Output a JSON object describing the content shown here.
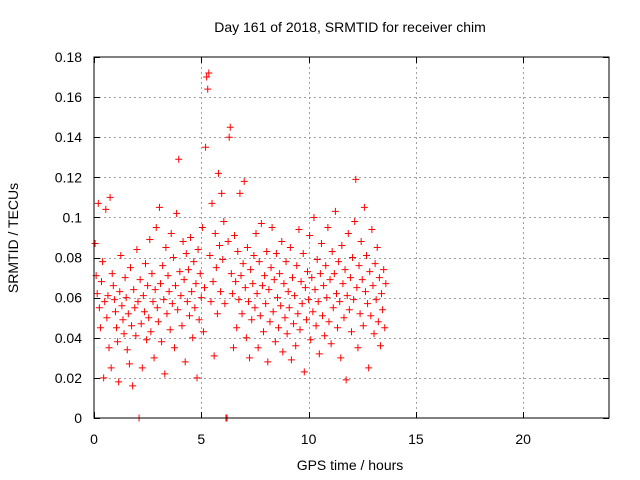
{
  "chart_data": {
    "type": "scatter",
    "title": "Day 161 of 2018, SRMTID for receiver chim",
    "xlabel": "GPS time / hours",
    "ylabel": "SRMTID / TECUs",
    "xlim": [
      0,
      24
    ],
    "ylim": [
      0,
      0.18
    ],
    "x_ticks": [
      0,
      5,
      10,
      15,
      20
    ],
    "x_tick_labels": [
      "0",
      "5",
      "10",
      "15",
      "20"
    ],
    "y_ticks": [
      0,
      0.02,
      0.04,
      0.06,
      0.08,
      0.1,
      0.12,
      0.14,
      0.16,
      0.18
    ],
    "y_tick_labels": [
      "0",
      "0.02",
      "0.04",
      "0.06",
      "0.08",
      "0.1",
      "0.12",
      "0.14",
      "0.16",
      "0.18"
    ],
    "grid": true,
    "marker": "plus",
    "color": "#ff0000",
    "series": [
      {
        "name": "SRMTID",
        "points": [
          [
            0.05,
            0.087
          ],
          [
            0.1,
            0.071
          ],
          [
            0.15,
            0.062
          ],
          [
            0.2,
            0.107
          ],
          [
            0.25,
            0.055
          ],
          [
            0.3,
            0.045
          ],
          [
            0.35,
            0.068
          ],
          [
            0.4,
            0.078
          ],
          [
            0.45,
            0.02
          ],
          [
            0.5,
            0.058
          ],
          [
            0.55,
            0.104
          ],
          [
            0.6,
            0.05
          ],
          [
            0.65,
            0.061
          ],
          [
            0.7,
            0.035
          ],
          [
            0.75,
            0.11
          ],
          [
            0.8,
            0.025
          ],
          [
            0.85,
            0.072
          ],
          [
            0.9,
            0.066
          ],
          [
            0.95,
            0.059
          ],
          [
            1.0,
            0.053
          ],
          [
            1.05,
            0.045
          ],
          [
            1.1,
            0.038
          ],
          [
            1.15,
            0.018
          ],
          [
            1.2,
            0.063
          ],
          [
            1.25,
            0.081
          ],
          [
            1.3,
            0.056
          ],
          [
            1.35,
            0.049
          ],
          [
            1.4,
            0.042
          ],
          [
            1.45,
            0.07
          ],
          [
            1.5,
            0.06
          ],
          [
            1.55,
            0.034
          ],
          [
            1.6,
            0.052
          ],
          [
            1.65,
            0.027
          ],
          [
            1.7,
            0.075
          ],
          [
            1.75,
            0.046
          ],
          [
            1.8,
            0.016
          ],
          [
            1.85,
            0.064
          ],
          [
            1.9,
            0.055
          ],
          [
            1.95,
            0.041
          ],
          [
            2.0,
            0.084
          ],
          [
            2.05,
            0.058
          ],
          [
            2.1,
            0.0
          ],
          [
            2.15,
            0.069
          ],
          [
            2.2,
            0.047
          ],
          [
            2.25,
            0.025
          ],
          [
            2.3,
            0.061
          ],
          [
            2.35,
            0.053
          ],
          [
            2.4,
            0.077
          ],
          [
            2.45,
            0.039
          ],
          [
            2.5,
            0.066
          ],
          [
            2.55,
            0.05
          ],
          [
            2.6,
            0.089
          ],
          [
            2.65,
            0.043
          ],
          [
            2.7,
            0.072
          ],
          [
            2.75,
            0.058
          ],
          [
            2.8,
            0.03
          ],
          [
            2.85,
            0.064
          ],
          [
            2.9,
            0.095
          ],
          [
            2.95,
            0.055
          ],
          [
            3.0,
            0.048
          ],
          [
            3.05,
            0.105
          ],
          [
            3.1,
            0.067
          ],
          [
            3.15,
            0.038
          ],
          [
            3.2,
            0.076
          ],
          [
            3.25,
            0.059
          ],
          [
            3.3,
            0.022
          ],
          [
            3.35,
            0.085
          ],
          [
            3.4,
            0.052
          ],
          [
            3.45,
            0.071
          ],
          [
            3.5,
            0.063
          ],
          [
            3.55,
            0.044
          ],
          [
            3.6,
            0.092
          ],
          [
            3.65,
            0.057
          ],
          [
            3.7,
            0.08
          ],
          [
            3.75,
            0.035
          ],
          [
            3.8,
            0.066
          ],
          [
            3.85,
            0.102
          ],
          [
            3.9,
            0.054
          ],
          [
            3.95,
            0.129
          ],
          [
            4.0,
            0.073
          ],
          [
            4.05,
            0.061
          ],
          [
            4.1,
            0.046
          ],
          [
            4.15,
            0.088
          ],
          [
            4.2,
            0.069
          ],
          [
            4.25,
            0.028
          ],
          [
            4.3,
            0.082
          ],
          [
            4.35,
            0.058
          ],
          [
            4.4,
            0.074
          ],
          [
            4.45,
            0.051
          ],
          [
            4.5,
            0.09
          ],
          [
            4.55,
            0.063
          ],
          [
            4.6,
            0.04
          ],
          [
            4.65,
            0.078
          ],
          [
            4.7,
            0.055
          ],
          [
            4.75,
            0.067
          ],
          [
            4.8,
            0.02
          ],
          [
            4.85,
            0.084
          ],
          [
            4.9,
            0.049
          ],
          [
            4.95,
            0.072
          ],
          [
            5.0,
            0.06
          ],
          [
            5.05,
            0.095
          ],
          [
            5.1,
            0.043
          ],
          [
            5.15,
            0.065
          ],
          [
            5.2,
            0.135
          ],
          [
            5.25,
            0.17
          ],
          [
            5.3,
            0.164
          ],
          [
            5.35,
            0.172
          ],
          [
            5.4,
            0.081
          ],
          [
            5.45,
            0.058
          ],
          [
            5.5,
            0.107
          ],
          [
            5.55,
            0.068
          ],
          [
            5.6,
            0.031
          ],
          [
            5.65,
            0.092
          ],
          [
            5.7,
            0.075
          ],
          [
            5.75,
            0.052
          ],
          [
            5.8,
            0.122
          ],
          [
            5.85,
            0.086
          ],
          [
            5.9,
            0.063
          ],
          [
            5.95,
            0.112
          ],
          [
            6.0,
            0.079
          ],
          [
            6.05,
            0.098
          ],
          [
            6.1,
            0.057
          ],
          [
            6.15,
            0.0
          ],
          [
            6.2,
            0.0
          ],
          [
            6.25,
            0.088
          ],
          [
            6.3,
            0.14
          ],
          [
            6.35,
            0.145
          ],
          [
            6.4,
            0.072
          ],
          [
            6.45,
            0.062
          ],
          [
            6.5,
            0.035
          ],
          [
            6.55,
            0.091
          ],
          [
            6.6,
            0.068
          ],
          [
            6.65,
            0.045
          ],
          [
            6.7,
            0.083
          ],
          [
            6.75,
            0.059
          ],
          [
            6.8,
            0.112
          ],
          [
            6.85,
            0.071
          ],
          [
            6.9,
            0.052
          ],
          [
            6.95,
            0.077
          ],
          [
            7.0,
            0.118
          ],
          [
            7.05,
            0.065
          ],
          [
            7.1,
            0.04
          ],
          [
            7.15,
            0.085
          ],
          [
            7.2,
            0.058
          ],
          [
            7.25,
            0.03
          ],
          [
            7.3,
            0.074
          ],
          [
            7.35,
            0.049
          ],
          [
            7.4,
            0.067
          ],
          [
            7.45,
            0.081
          ],
          [
            7.5,
            0.055
          ],
          [
            7.55,
            0.092
          ],
          [
            7.6,
            0.062
          ],
          [
            7.65,
            0.035
          ],
          [
            7.7,
            0.078
          ],
          [
            7.75,
            0.051
          ],
          [
            7.8,
            0.097
          ],
          [
            7.85,
            0.066
          ],
          [
            7.9,
            0.043
          ],
          [
            7.95,
            0.071
          ],
          [
            8.0,
            0.057
          ],
          [
            8.05,
            0.083
          ],
          [
            8.1,
            0.028
          ],
          [
            8.15,
            0.064
          ],
          [
            8.2,
            0.048
          ],
          [
            8.25,
            0.075
          ],
          [
            8.3,
            0.095
          ],
          [
            8.35,
            0.053
          ],
          [
            8.4,
            0.069
          ],
          [
            8.45,
            0.038
          ],
          [
            8.5,
            0.082
          ],
          [
            8.55,
            0.06
          ],
          [
            8.6,
            0.045
          ],
          [
            8.65,
            0.072
          ],
          [
            8.7,
            0.056
          ],
          [
            8.75,
            0.088
          ],
          [
            8.8,
            0.033
          ],
          [
            8.85,
            0.067
          ],
          [
            8.9,
            0.05
          ],
          [
            8.95,
            0.078
          ],
          [
            9.0,
            0.042
          ],
          [
            9.05,
            0.063
          ],
          [
            9.1,
            0.055
          ],
          [
            9.15,
            0.085
          ],
          [
            9.2,
            0.029
          ],
          [
            9.25,
            0.07
          ],
          [
            9.3,
            0.047
          ],
          [
            9.35,
            0.061
          ],
          [
            9.4,
            0.036
          ],
          [
            9.45,
            0.076
          ],
          [
            9.5,
            0.052
          ],
          [
            9.55,
            0.094
          ],
          [
            9.6,
            0.044
          ],
          [
            9.65,
            0.068
          ],
          [
            9.7,
            0.057
          ],
          [
            9.75,
            0.082
          ],
          [
            9.8,
            0.023
          ],
          [
            9.85,
            0.065
          ],
          [
            9.9,
            0.049
          ],
          [
            9.95,
            0.073
          ],
          [
            10.0,
            0.059
          ],
          [
            10.05,
            0.091
          ],
          [
            10.1,
            0.039
          ],
          [
            10.15,
            0.07
          ],
          [
            10.2,
            0.053
          ],
          [
            10.25,
            0.1
          ],
          [
            10.3,
            0.064
          ],
          [
            10.35,
            0.046
          ],
          [
            10.4,
            0.079
          ],
          [
            10.45,
            0.058
          ],
          [
            10.5,
            0.032
          ],
          [
            10.55,
            0.072
          ],
          [
            10.6,
            0.087
          ],
          [
            10.65,
            0.051
          ],
          [
            10.7,
            0.066
          ],
          [
            10.75,
            0.041
          ],
          [
            10.8,
            0.076
          ],
          [
            10.85,
            0.06
          ],
          [
            10.9,
            0.095
          ],
          [
            10.95,
            0.048
          ],
          [
            11.0,
            0.069
          ],
          [
            11.05,
            0.037
          ],
          [
            11.1,
            0.083
          ],
          [
            11.15,
            0.055
          ],
          [
            11.2,
            0.072
          ],
          [
            11.25,
            0.103
          ],
          [
            11.3,
            0.062
          ],
          [
            11.35,
            0.045
          ],
          [
            11.4,
            0.078
          ],
          [
            11.45,
            0.058
          ],
          [
            11.5,
            0.03
          ],
          [
            11.55,
            0.086
          ],
          [
            11.6,
            0.067
          ],
          [
            11.65,
            0.05
          ],
          [
            11.7,
            0.074
          ],
          [
            11.75,
            0.019
          ],
          [
            11.8,
            0.061
          ],
          [
            11.85,
            0.092
          ],
          [
            11.9,
            0.054
          ],
          [
            11.95,
            0.07
          ],
          [
            12.0,
            0.043
          ],
          [
            12.05,
            0.08
          ],
          [
            12.1,
            0.059
          ],
          [
            12.15,
            0.098
          ],
          [
            12.2,
            0.119
          ],
          [
            12.25,
            0.065
          ],
          [
            12.3,
            0.035
          ],
          [
            12.35,
            0.076
          ],
          [
            12.4,
            0.052
          ],
          [
            12.45,
            0.088
          ],
          [
            12.5,
            0.069
          ],
          [
            12.55,
            0.046
          ],
          [
            12.6,
            0.105
          ],
          [
            12.65,
            0.063
          ],
          [
            12.7,
            0.081
          ],
          [
            12.75,
            0.057
          ],
          [
            12.8,
            0.025
          ],
          [
            12.85,
            0.073
          ],
          [
            12.9,
            0.051
          ],
          [
            12.95,
            0.094
          ],
          [
            13.0,
            0.066
          ],
          [
            13.05,
            0.042
          ],
          [
            13.1,
            0.077
          ],
          [
            13.15,
            0.059
          ],
          [
            13.2,
            0.085
          ],
          [
            13.25,
            0.048
          ],
          [
            13.3,
            0.07
          ],
          [
            13.35,
            0.036
          ],
          [
            13.4,
            0.062
          ],
          [
            13.45,
            0.054
          ],
          [
            13.5,
            0.074
          ],
          [
            13.55,
            0.045
          ],
          [
            13.6,
            0.067
          ]
        ]
      }
    ]
  }
}
